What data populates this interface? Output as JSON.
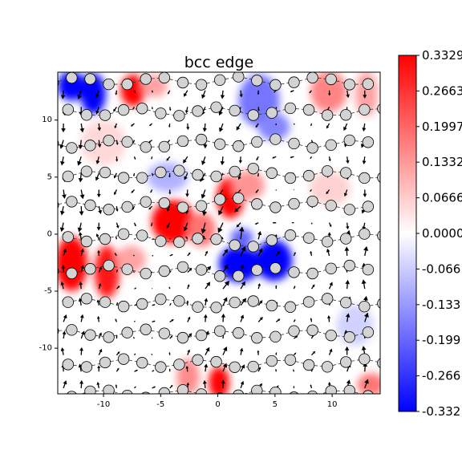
{
  "chart_data": {
    "type": "heatmap",
    "title": "bcc edge",
    "xlabel": "",
    "ylabel": "",
    "xlim": [
      -14,
      14.2
    ],
    "ylim": [
      -14,
      14.2
    ],
    "x_ticks": [
      -10,
      -5,
      0,
      5,
      10
    ],
    "y_ticks": [
      10,
      5,
      0,
      -5,
      -10
    ],
    "grid": false,
    "colormap": "bwr",
    "colors": {
      "low": "#0000ff",
      "mid": "#ffffff",
      "high": "#ff0000",
      "atom_fill": "#d3d3d3",
      "atom_edge": "#000000",
      "arrow": "#000000"
    },
    "colorbar": {
      "vmin": -0.3329,
      "vmax": 0.3329,
      "tick_labels": [
        "0.3329",
        "0.2663",
        "0.1997",
        "0.1332",
        "0.0666",
        "0.0000",
        "-0.066",
        "-0.133",
        "-0.199",
        "-0.266",
        "-0.332"
      ]
    },
    "field_blobs": [
      {
        "x": -12.8,
        "y": 13.0,
        "sx": 1.2,
        "sy": 1.3,
        "v": -0.33
      },
      {
        "x": -10.9,
        "y": 12.3,
        "sx": 1.1,
        "sy": 1.8,
        "v": -0.33
      },
      {
        "x": -7.4,
        "y": 12.6,
        "sx": 1.1,
        "sy": 1.4,
        "v": 0.33
      },
      {
        "x": -5.5,
        "y": 13.0,
        "sx": 1.1,
        "sy": 1.0,
        "v": 0.12
      },
      {
        "x": 3.6,
        "y": 11.7,
        "sx": 1.8,
        "sy": 2.3,
        "v": -0.18
      },
      {
        "x": 4.9,
        "y": 9.4,
        "sx": 1.4,
        "sy": 1.2,
        "v": -0.16
      },
      {
        "x": 9.7,
        "y": 12.5,
        "sx": 1.6,
        "sy": 1.8,
        "v": 0.16
      },
      {
        "x": 13.0,
        "y": 12.3,
        "sx": 1.0,
        "sy": 2.0,
        "v": 0.12
      },
      {
        "x": -3.9,
        "y": 1.1,
        "sx": 1.9,
        "sy": 1.9,
        "v": 0.33
      },
      {
        "x": -1.4,
        "y": 0.4,
        "sx": 1.2,
        "sy": 1.5,
        "v": 0.18
      },
      {
        "x": 1.1,
        "y": 3.2,
        "sx": 1.2,
        "sy": 1.8,
        "v": 0.33
      },
      {
        "x": 2.7,
        "y": 4.3,
        "sx": 1.4,
        "sy": 1.3,
        "v": 0.14
      },
      {
        "x": -4.4,
        "y": 5.0,
        "sx": 1.8,
        "sy": 1.3,
        "v": -0.1
      },
      {
        "x": -12.8,
        "y": -2.6,
        "sx": 1.4,
        "sy": 2.4,
        "v": 0.33
      },
      {
        "x": -9.7,
        "y": -3.3,
        "sx": 1.1,
        "sy": 2.3,
        "v": 0.3
      },
      {
        "x": -7.6,
        "y": -2.2,
        "sx": 1.3,
        "sy": 1.2,
        "v": 0.12
      },
      {
        "x": 1.9,
        "y": -2.6,
        "sx": 1.8,
        "sy": 1.6,
        "v": -0.33
      },
      {
        "x": 4.9,
        "y": -2.3,
        "sx": 1.6,
        "sy": 1.8,
        "v": -0.33
      },
      {
        "x": 2.1,
        "y": -0.3,
        "sx": 1.0,
        "sy": 0.8,
        "v": -0.2
      },
      {
        "x": 0.1,
        "y": -13.0,
        "sx": 0.9,
        "sy": 1.4,
        "v": 0.33
      },
      {
        "x": -2.6,
        "y": -12.5,
        "sx": 1.0,
        "sy": 1.6,
        "v": 0.15
      },
      {
        "x": 13.4,
        "y": -13.2,
        "sx": 1.2,
        "sy": 1.0,
        "v": 0.18
      },
      {
        "x": 12.0,
        "y": -8.0,
        "sx": 1.6,
        "sy": 1.8,
        "v": -0.06
      },
      {
        "x": 9.8,
        "y": 4.0,
        "sx": 1.8,
        "sy": 1.5,
        "v": 0.06
      },
      {
        "x": -10.0,
        "y": 8.0,
        "sx": 2.0,
        "sy": 2.0,
        "v": 0.05
      }
    ],
    "atom_rows": [
      {
        "y0": 13.4,
        "kind": "top"
      },
      {
        "y0": 10.7,
        "kind": "top"
      },
      {
        "y0": 7.9,
        "kind": "top"
      },
      {
        "y0": 5.2,
        "kind": "top"
      },
      {
        "y0": 2.5,
        "kind": "top"
      },
      {
        "y0": -0.3,
        "kind": "bottom"
      },
      {
        "y0": -3.1,
        "kind": "bottom"
      },
      {
        "y0": -6.0,
        "kind": "bottom"
      },
      {
        "y0": -8.7,
        "kind": "bottom"
      },
      {
        "y0": -11.3,
        "kind": "bottom"
      },
      {
        "y0": -14.0,
        "kind": "bottom"
      }
    ]
  }
}
